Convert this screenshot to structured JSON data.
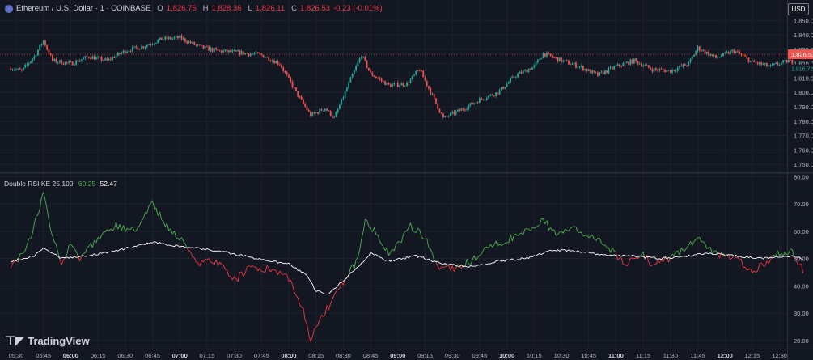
{
  "header": {
    "symbol": "Ethereum / U.S. Dollar · 1 · COINBASE",
    "open_label": "O",
    "open": "1,826.75",
    "high_label": "H",
    "high": "1,828.36",
    "low_label": "L",
    "low": "1,826.11",
    "close_label": "C",
    "close": "1,826.53",
    "change": "-0.23 (-0.01%)"
  },
  "currency_button": "USD",
  "indicator": {
    "name": "Double RSI KE 25 100",
    "fast_value": "60.25",
    "slow_value": "52.47"
  },
  "branding": {
    "name": "TradingView"
  },
  "colors": {
    "up": "#26a69a",
    "down": "#ef5350",
    "rsi_fast": "#4caf50",
    "rsi_below": "#f23645",
    "rsi_slow": "#ffffff",
    "background": "#131722"
  },
  "icons": {
    "symbol_logo": "ethereum-coin-icon",
    "brand_logo": "tradingview-logo-icon"
  },
  "chart_data": [
    {
      "type": "candlestick",
      "title": "Ethereum / U.S. Dollar · 1 · COINBASE",
      "x_ticks": [
        "05:30",
        "05:45",
        "06:00",
        "06:15",
        "06:30",
        "06:45",
        "07:00",
        "07:15",
        "07:30",
        "07:45",
        "08:00",
        "08:15",
        "08:30",
        "08:45",
        "09:00",
        "09:15",
        "09:30",
        "09:45",
        "10:00",
        "10:15",
        "10:30",
        "10:45",
        "11:00",
        "11:15",
        "11:30",
        "11:45",
        "12:00",
        "12:15",
        "12:30"
      ],
      "y_ticks": [
        "1,850.00",
        "1,840.00",
        "1,830.00",
        "1,820.00",
        "1,810.00",
        "1,800.00",
        "1,790.00",
        "1,780.00",
        "1,770.00",
        "1,760.00",
        "1,750.00"
      ],
      "ylim": [
        1745,
        1853
      ],
      "last_price": "1,826.53",
      "second_price_label": "1,816.72",
      "interval_minutes": 15,
      "close_keypoints": [
        [
          "05:27",
          1817
        ],
        [
          "05:33",
          1815
        ],
        [
          "05:40",
          1825
        ],
        [
          "05:45",
          1836
        ],
        [
          "05:50",
          1822
        ],
        [
          "06:00",
          1820
        ],
        [
          "06:10",
          1825
        ],
        [
          "06:20",
          1822
        ],
        [
          "06:30",
          1829
        ],
        [
          "06:40",
          1832
        ],
        [
          "06:50",
          1837
        ],
        [
          "07:00",
          1838
        ],
        [
          "07:10",
          1832
        ],
        [
          "07:20",
          1829
        ],
        [
          "07:30",
          1828
        ],
        [
          "07:45",
          1826
        ],
        [
          "07:55",
          1820
        ],
        [
          "08:05",
          1798
        ],
        [
          "08:12",
          1784
        ],
        [
          "08:20",
          1789
        ],
        [
          "08:25",
          1782
        ],
        [
          "08:30",
          1797
        ],
        [
          "08:35",
          1812
        ],
        [
          "08:40",
          1826
        ],
        [
          "08:45",
          1813
        ],
        [
          "08:55",
          1805
        ],
        [
          "09:05",
          1806
        ],
        [
          "09:12",
          1816
        ],
        [
          "09:20",
          1795
        ],
        [
          "09:25",
          1782
        ],
        [
          "09:35",
          1788
        ],
        [
          "09:45",
          1795
        ],
        [
          "09:55",
          1800
        ],
        [
          "10:05",
          1812
        ],
        [
          "10:15",
          1818
        ],
        [
          "10:20",
          1827
        ],
        [
          "10:30",
          1822
        ],
        [
          "10:40",
          1818
        ],
        [
          "10:50",
          1812
        ],
        [
          "11:00",
          1818
        ],
        [
          "11:10",
          1822
        ],
        [
          "11:20",
          1816
        ],
        [
          "11:30",
          1815
        ],
        [
          "11:40",
          1820
        ],
        [
          "11:45",
          1831
        ],
        [
          "11:55",
          1824
        ],
        [
          "12:05",
          1829
        ],
        [
          "12:15",
          1821
        ],
        [
          "12:25",
          1818
        ],
        [
          "12:35",
          1822
        ],
        [
          "12:43",
          1817
        ]
      ]
    },
    {
      "type": "line",
      "title": "Double RSI KE 25 100",
      "y_ticks": [
        "80.00",
        "70.00",
        "60.00",
        "50.00",
        "40.00",
        "30.00",
        "20.00"
      ],
      "ylim": [
        17,
        81
      ],
      "midline": 50,
      "series": [
        {
          "name": "",
          "keypoints": [
            [
              "05:27",
              48
            ],
            [
              "05:35",
              52
            ],
            [
              "05:40",
              62
            ],
            [
              "05:45",
              74
            ],
            [
              "05:50",
              58
            ],
            [
              "05:55",
              49
            ],
            [
              "06:00",
              56
            ],
            [
              "06:05",
              50
            ],
            [
              "06:15",
              57
            ],
            [
              "06:25",
              62
            ],
            [
              "06:35",
              60
            ],
            [
              "06:45",
              70
            ],
            [
              "06:55",
              60
            ],
            [
              "07:00",
              58
            ],
            [
              "07:10",
              48
            ],
            [
              "07:20",
              49
            ],
            [
              "07:30",
              42
            ],
            [
              "07:40",
              47
            ],
            [
              "07:50",
              46
            ],
            [
              "08:00",
              43
            ],
            [
              "08:07",
              33
            ],
            [
              "08:12",
              21
            ],
            [
              "08:18",
              28
            ],
            [
              "08:25",
              36
            ],
            [
              "08:32",
              43
            ],
            [
              "08:38",
              50
            ],
            [
              "08:42",
              65
            ],
            [
              "08:47",
              60
            ],
            [
              "08:55",
              52
            ],
            [
              "09:00",
              55
            ],
            [
              "09:07",
              62
            ],
            [
              "09:15",
              58
            ],
            [
              "09:22",
              47
            ],
            [
              "09:30",
              46
            ],
            [
              "09:40",
              49
            ],
            [
              "09:50",
              54
            ],
            [
              "10:00",
              57
            ],
            [
              "10:08",
              59
            ],
            [
              "10:20",
              64
            ],
            [
              "10:28",
              58
            ],
            [
              "10:35",
              62
            ],
            [
              "10:45",
              58
            ],
            [
              "10:55",
              55
            ],
            [
              "11:05",
              48
            ],
            [
              "11:15",
              52
            ],
            [
              "11:20",
              47
            ],
            [
              "11:30",
              50
            ],
            [
              "11:40",
              55
            ],
            [
              "11:45",
              57
            ],
            [
              "11:55",
              52
            ],
            [
              "12:05",
              50
            ],
            [
              "12:15",
              46
            ],
            [
              "12:20",
              47
            ],
            [
              "12:30",
              52
            ],
            [
              "12:37",
              52
            ],
            [
              "12:43",
              46
            ]
          ]
        },
        {
          "name": "",
          "keypoints": [
            [
              "05:27",
              49
            ],
            [
              "05:40",
              51
            ],
            [
              "05:45",
              54
            ],
            [
              "05:55",
              50
            ],
            [
              "06:10",
              51
            ],
            [
              "06:25",
              53
            ],
            [
              "06:45",
              56
            ],
            [
              "06:55",
              55
            ],
            [
              "07:05",
              54
            ],
            [
              "07:20",
              53
            ],
            [
              "07:35",
              51
            ],
            [
              "07:50",
              49
            ],
            [
              "08:00",
              48
            ],
            [
              "08:10",
              44
            ],
            [
              "08:15",
              38
            ],
            [
              "08:22",
              37
            ],
            [
              "08:30",
              42
            ],
            [
              "08:38",
              47
            ],
            [
              "08:45",
              52
            ],
            [
              "08:55",
              49
            ],
            [
              "09:10",
              51
            ],
            [
              "09:25",
              48
            ],
            [
              "09:40",
              47
            ],
            [
              "09:55",
              49
            ],
            [
              "10:10",
              50
            ],
            [
              "10:25",
              53
            ],
            [
              "10:35",
              53
            ],
            [
              "10:45",
              52
            ],
            [
              "10:55",
              51
            ],
            [
              "11:10",
              51
            ],
            [
              "11:25",
              50
            ],
            [
              "11:40",
              51
            ],
            [
              "11:50",
              52
            ],
            [
              "12:05",
              51
            ],
            [
              "12:20",
              50
            ],
            [
              "12:35",
              51
            ],
            [
              "12:43",
              50
            ]
          ]
        }
      ]
    }
  ]
}
